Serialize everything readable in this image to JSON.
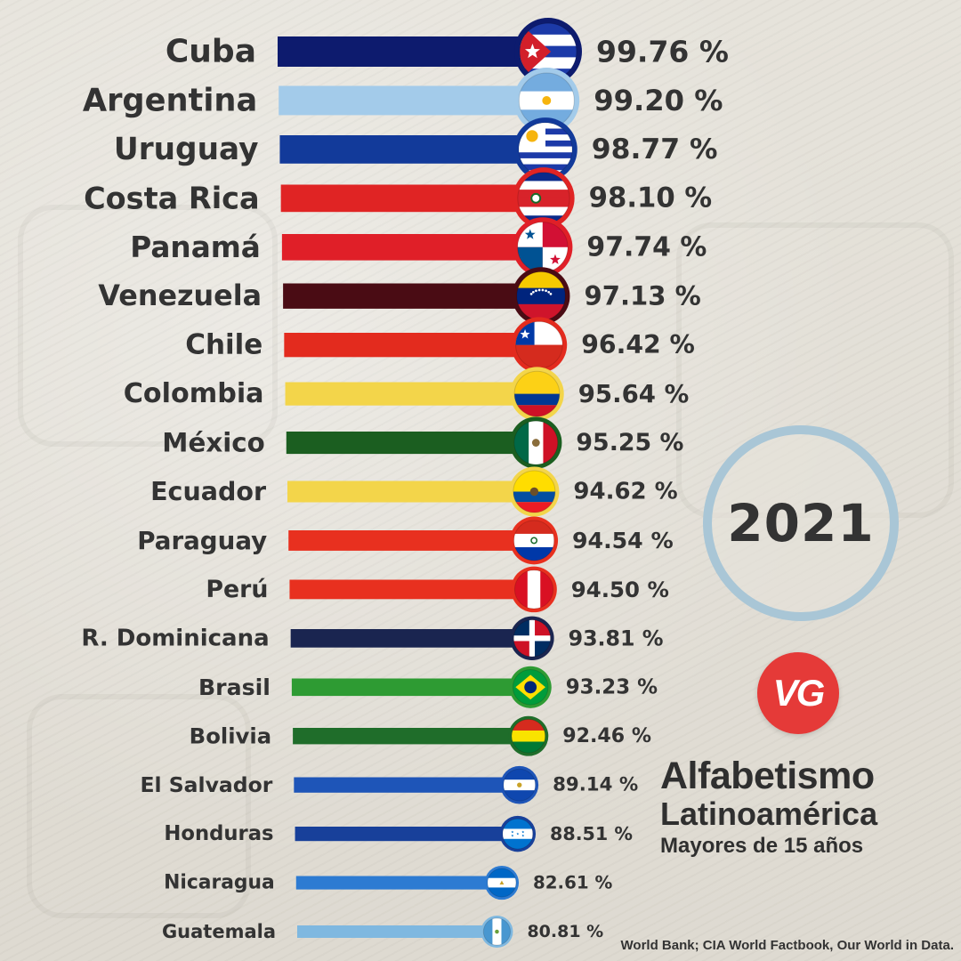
{
  "chart_data": {
    "type": "bar",
    "orientation": "horizontal",
    "categories": [
      "Cuba",
      "Argentina",
      "Uruguay",
      "Costa Rica",
      "Panamá",
      "Venezuela",
      "Chile",
      "Colombia",
      "México",
      "Ecuador",
      "Paraguay",
      "Perú",
      "R. Dominicana",
      "Brasil",
      "Bolivia",
      "El Salvador",
      "Honduras",
      "Nicaragua",
      "Guatemala"
    ],
    "values": [
      99.76,
      99.2,
      98.77,
      98.1,
      97.74,
      97.13,
      96.42,
      95.64,
      95.25,
      94.62,
      94.54,
      94.5,
      93.81,
      93.23,
      92.46,
      89.14,
      88.51,
      82.61,
      80.81
    ],
    "value_labels": [
      "99.76 %",
      "99.20 %",
      "98.77 %",
      "98.10 %",
      "97.74 %",
      "97.13 %",
      "96.42 %",
      "95.64 %",
      "95.25 %",
      "94.62 %",
      "94.54 %",
      "94.50 %",
      "93.81 %",
      "93.23 %",
      "92.46 %",
      "89.14 %",
      "88.51 %",
      "82.61 %",
      "80.81 %"
    ],
    "bar_colors": [
      "#0d1b6e",
      "#a3cbea",
      "#123a9a",
      "#e02424",
      "#e01f28",
      "#4a0c14",
      "#e32b1e",
      "#f3d54a",
      "#1b5e20",
      "#f3d54a",
      "#e8301f",
      "#e8301f",
      "#1a2550",
      "#2e9b33",
      "#1f6d2a",
      "#1e55b8",
      "#18409a",
      "#2d7bd2",
      "#7fb8e0"
    ],
    "flag_icons": [
      "cuba-flag-icon",
      "argentina-flag-icon",
      "uruguay-flag-icon",
      "costa-rica-flag-icon",
      "panama-flag-icon",
      "venezuela-flag-icon",
      "chile-flag-icon",
      "colombia-flag-icon",
      "mexico-flag-icon",
      "ecuador-flag-icon",
      "paraguay-flag-icon",
      "peru-flag-icon",
      "dominican-republic-flag-icon",
      "brazil-flag-icon",
      "bolivia-flag-icon",
      "el-salvador-flag-icon",
      "honduras-flag-icon",
      "nicaragua-flag-icon",
      "guatemala-flag-icon"
    ],
    "title": "Alfabetismo Latinoamérica",
    "subtitle": "Mayores de 15 años",
    "xlabel": "",
    "ylabel": "",
    "grid": false,
    "legend": "none"
  },
  "year": "2021",
  "logo_text": "VG",
  "title_line1": "Alfabetismo",
  "title_line2": "Latinoamérica",
  "title_line3": "Mayores de 15 años",
  "source": "World Bank; CIA World Factbook, Our World in Data."
}
